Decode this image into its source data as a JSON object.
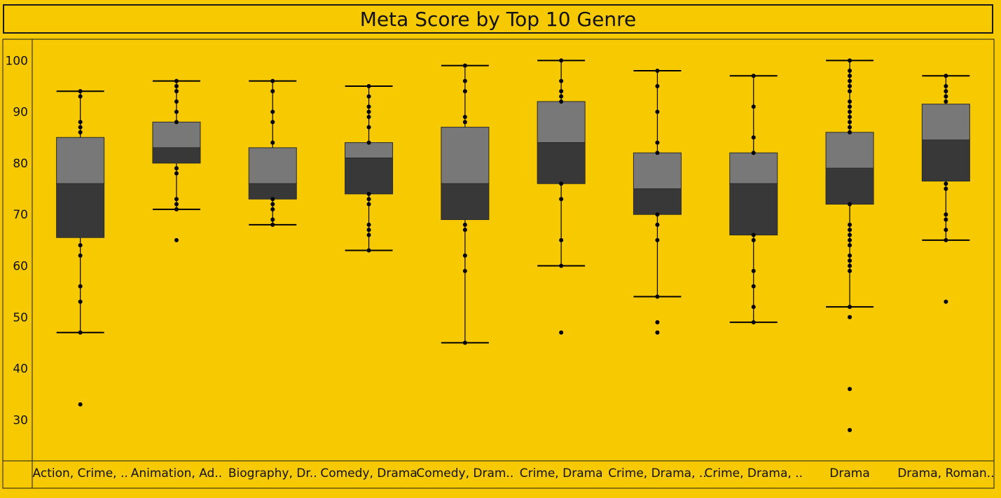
{
  "chart_data": {
    "type": "boxplot",
    "title": "Meta Score by Top 10 Genre",
    "xlabel": "",
    "ylabel": "",
    "ylim": [
      22,
      104
    ],
    "y_ticks": [
      30,
      40,
      50,
      60,
      70,
      80,
      90,
      100
    ],
    "grid": false,
    "colors": {
      "background": "#f6c900",
      "upper_box": "#787878",
      "lower_box": "#383838",
      "points": "#000000",
      "lines": "#000000"
    },
    "categories": [
      "Action, Crime, ..",
      "Animation, Ad..",
      "Biography, Dr..",
      "Comedy, Drama",
      "Comedy, Dram..",
      "Crime, Drama",
      "Crime, Drama, ..",
      "Crime, Drama, ..",
      "Drama",
      "Drama, Roman.."
    ],
    "boxes": [
      {
        "whisker_low": 47,
        "q1": 65.5,
        "median": 76,
        "q3": 85,
        "whisker_high": 94,
        "points": [
          94,
          93,
          88,
          87,
          86,
          64,
          62,
          56,
          53,
          47,
          33
        ]
      },
      {
        "whisker_low": 71,
        "q1": 80,
        "median": 83,
        "q3": 88,
        "whisker_high": 96,
        "points": [
          96,
          95,
          94,
          92,
          90,
          88,
          79,
          78,
          73,
          72,
          71,
          65
        ]
      },
      {
        "whisker_low": 68,
        "q1": 73,
        "median": 76,
        "q3": 83,
        "whisker_high": 96,
        "points": [
          96,
          94,
          90,
          88,
          84,
          73,
          72,
          71,
          69,
          68
        ]
      },
      {
        "whisker_low": 63,
        "q1": 74,
        "median": 81,
        "q3": 84,
        "whisker_high": 95,
        "points": [
          95,
          93,
          91,
          90,
          89,
          87,
          84,
          74,
          73,
          72,
          68,
          67,
          66,
          63
        ]
      },
      {
        "whisker_low": 45,
        "q1": 69,
        "median": 76,
        "q3": 87,
        "whisker_high": 99,
        "points": [
          99,
          96,
          94,
          89,
          88,
          68,
          67,
          62,
          59,
          45
        ]
      },
      {
        "whisker_low": 60,
        "q1": 76,
        "median": 84,
        "q3": 92,
        "whisker_high": 100,
        "points": [
          100,
          96,
          94,
          93,
          92,
          76,
          73,
          65,
          60,
          47
        ]
      },
      {
        "whisker_low": 54,
        "q1": 70,
        "median": 75,
        "q3": 82,
        "whisker_high": 98,
        "points": [
          98,
          95,
          90,
          84,
          82,
          70,
          68,
          65,
          54,
          49,
          47
        ]
      },
      {
        "whisker_low": 49,
        "q1": 66,
        "median": 76,
        "q3": 82,
        "whisker_high": 97,
        "points": [
          97,
          91,
          85,
          82,
          66,
          65,
          59,
          56,
          52,
          49
        ]
      },
      {
        "whisker_low": 52,
        "q1": 72,
        "median": 79,
        "q3": 86,
        "whisker_high": 100,
        "points": [
          100,
          98,
          97,
          96,
          95,
          94,
          92,
          91,
          90,
          89,
          88,
          87,
          86,
          72,
          68,
          67,
          66,
          65,
          64,
          62,
          61,
          60,
          59,
          52,
          50,
          36,
          28
        ]
      },
      {
        "whisker_low": 65,
        "q1": 76.5,
        "median": 84.5,
        "q3": 91.5,
        "whisker_high": 97,
        "points": [
          97,
          95,
          94,
          93,
          92,
          76,
          75,
          70,
          69,
          67,
          65,
          53
        ]
      }
    ]
  }
}
